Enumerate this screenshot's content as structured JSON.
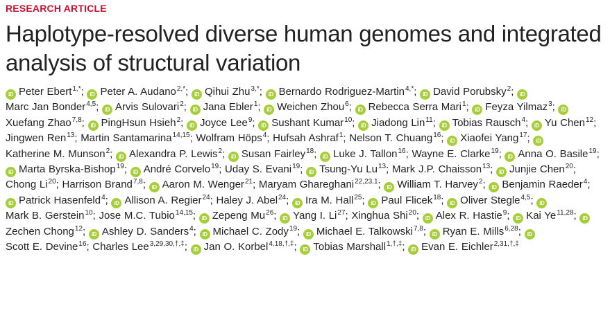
{
  "header": {
    "label": "RESEARCH ARTICLE",
    "title": "Haplotype-resolved diverse human genomes and integrated analysis of structural variation"
  },
  "separator": ";",
  "authors": [
    {
      "name": "Peter Ebert",
      "affil": "1,*",
      "orcid": true
    },
    {
      "name": "Peter A. Audano",
      "affil": "2,*",
      "orcid": true
    },
    {
      "name": "Qihui Zhu",
      "affil": "3,*",
      "orcid": true
    },
    {
      "name": "Bernardo Rodriguez-Martin",
      "affil": "4,*",
      "orcid": true
    },
    {
      "name": "David Porubsky",
      "affil": "2",
      "orcid": true
    },
    {
      "name": "Marc Jan Bonder",
      "affil": "4,5",
      "orcid": true
    },
    {
      "name": "Arvis Sulovari",
      "affil": "2",
      "orcid": true
    },
    {
      "name": "Jana Ebler",
      "affil": "1",
      "orcid": true
    },
    {
      "name": "Weichen Zhou",
      "affil": "6",
      "orcid": true
    },
    {
      "name": "Rebecca Serra Mari",
      "affil": "1",
      "orcid": true
    },
    {
      "name": "Feyza Yilmaz",
      "affil": "3",
      "orcid": true
    },
    {
      "name": "Xuefang Zhao",
      "affil": "7,8",
      "orcid": true
    },
    {
      "name": "PingHsun Hsieh",
      "affil": "2",
      "orcid": true
    },
    {
      "name": "Joyce Lee",
      "affil": "9",
      "orcid": true
    },
    {
      "name": "Sushant Kumar",
      "affil": "10",
      "orcid": true
    },
    {
      "name": "Jiadong Lin",
      "affil": "11",
      "orcid": true
    },
    {
      "name": "Tobias Rausch",
      "affil": "4",
      "orcid": true
    },
    {
      "name": "Yu Chen",
      "affil": "12",
      "orcid": true
    },
    {
      "name": "Jingwen Ren",
      "affil": "13",
      "orcid": false
    },
    {
      "name": "Martin Santamarina",
      "affil": "14,15",
      "orcid": false
    },
    {
      "name": "Wolfram Höps",
      "affil": "4",
      "orcid": false
    },
    {
      "name": "Hufsah Ashraf",
      "affil": "1",
      "orcid": false
    },
    {
      "name": "Nelson T. Chuang",
      "affil": "16",
      "orcid": false
    },
    {
      "name": "Xiaofei Yang",
      "affil": "17",
      "orcid": true
    },
    {
      "name": "Katherine M. Munson",
      "affil": "2",
      "orcid": true
    },
    {
      "name": "Alexandra P. Lewis",
      "affil": "2",
      "orcid": true
    },
    {
      "name": "Susan Fairley",
      "affil": "18",
      "orcid": true
    },
    {
      "name": "Luke J. Tallon",
      "affil": "16",
      "orcid": true
    },
    {
      "name": "Wayne E. Clarke",
      "affil": "19",
      "orcid": false
    },
    {
      "name": "Anna O. Basile",
      "affil": "19",
      "orcid": true
    },
    {
      "name": "Marta Byrska-Bishop",
      "affil": "19",
      "orcid": true
    },
    {
      "name": "André Corvelo",
      "affil": "19",
      "orcid": true
    },
    {
      "name": "Uday S. Evani",
      "affil": "19",
      "orcid": false
    },
    {
      "name": "Tsung-Yu Lu",
      "affil": "13",
      "orcid": true
    },
    {
      "name": "Mark J.P. Chaisson",
      "affil": "13",
      "orcid": false
    },
    {
      "name": "Junjie Chen",
      "affil": "20",
      "orcid": true
    },
    {
      "name": "Chong Li",
      "affil": "20",
      "orcid": false
    },
    {
      "name": "Harrison Brand",
      "affil": "7,8",
      "orcid": false
    },
    {
      "name": "Aaron M. Wenger",
      "affil": "21",
      "orcid": true
    },
    {
      "name": "Maryam Ghareghani",
      "affil": "22,23,1",
      "orcid": false
    },
    {
      "name": "William T. Harvey",
      "affil": "2",
      "orcid": true
    },
    {
      "name": "Benjamin Raeder",
      "affil": "4",
      "orcid": true
    },
    {
      "name": "Patrick Hasenfeld",
      "affil": "4",
      "orcid": true
    },
    {
      "name": "Allison A. Regier",
      "affil": "24",
      "orcid": true
    },
    {
      "name": "Haley J. Abel",
      "affil": "24",
      "orcid": false
    },
    {
      "name": "Ira M. Hall",
      "affil": "25",
      "orcid": true
    },
    {
      "name": "Paul Flicek",
      "affil": "18",
      "orcid": true
    },
    {
      "name": "Oliver Stegle",
      "affil": "4,5",
      "orcid": true
    },
    {
      "name": "Mark B. Gerstein",
      "affil": "10",
      "orcid": true
    },
    {
      "name": "Jose M.C. Tubio",
      "affil": "14,15",
      "orcid": false
    },
    {
      "name": "Zepeng Mu",
      "affil": "26",
      "orcid": true
    },
    {
      "name": "Yang I. Li",
      "affil": "27",
      "orcid": true
    },
    {
      "name": "Xinghua Shi",
      "affil": "20",
      "orcid": false
    },
    {
      "name": "Alex R. Hastie",
      "affil": "9",
      "orcid": true
    },
    {
      "name": "Kai Ye",
      "affil": "11,28",
      "orcid": true
    },
    {
      "name": "Zechen Chong",
      "affil": "12",
      "orcid": true
    },
    {
      "name": "Ashley D. Sanders",
      "affil": "4",
      "orcid": true
    },
    {
      "name": "Michael C. Zody",
      "affil": "19",
      "orcid": true
    },
    {
      "name": "Michael E. Talkowski",
      "affil": "7,8",
      "orcid": true
    },
    {
      "name": "Ryan E. Mills",
      "affil": "6,28",
      "orcid": true
    },
    {
      "name": "Scott E. Devine",
      "affil": "16",
      "orcid": true
    },
    {
      "name": "Charles Lee",
      "affil": "3,29,30,†,‡",
      "orcid": false
    },
    {
      "name": "Jan O. Korbel",
      "affil": "4,18,†,‡",
      "orcid": true
    },
    {
      "name": "Tobias Marshall",
      "affil": "1,†,‡",
      "orcid": true
    },
    {
      "name": "Evan E. Eichler",
      "affil": "2,31,†,‡",
      "orcid": true
    }
  ]
}
